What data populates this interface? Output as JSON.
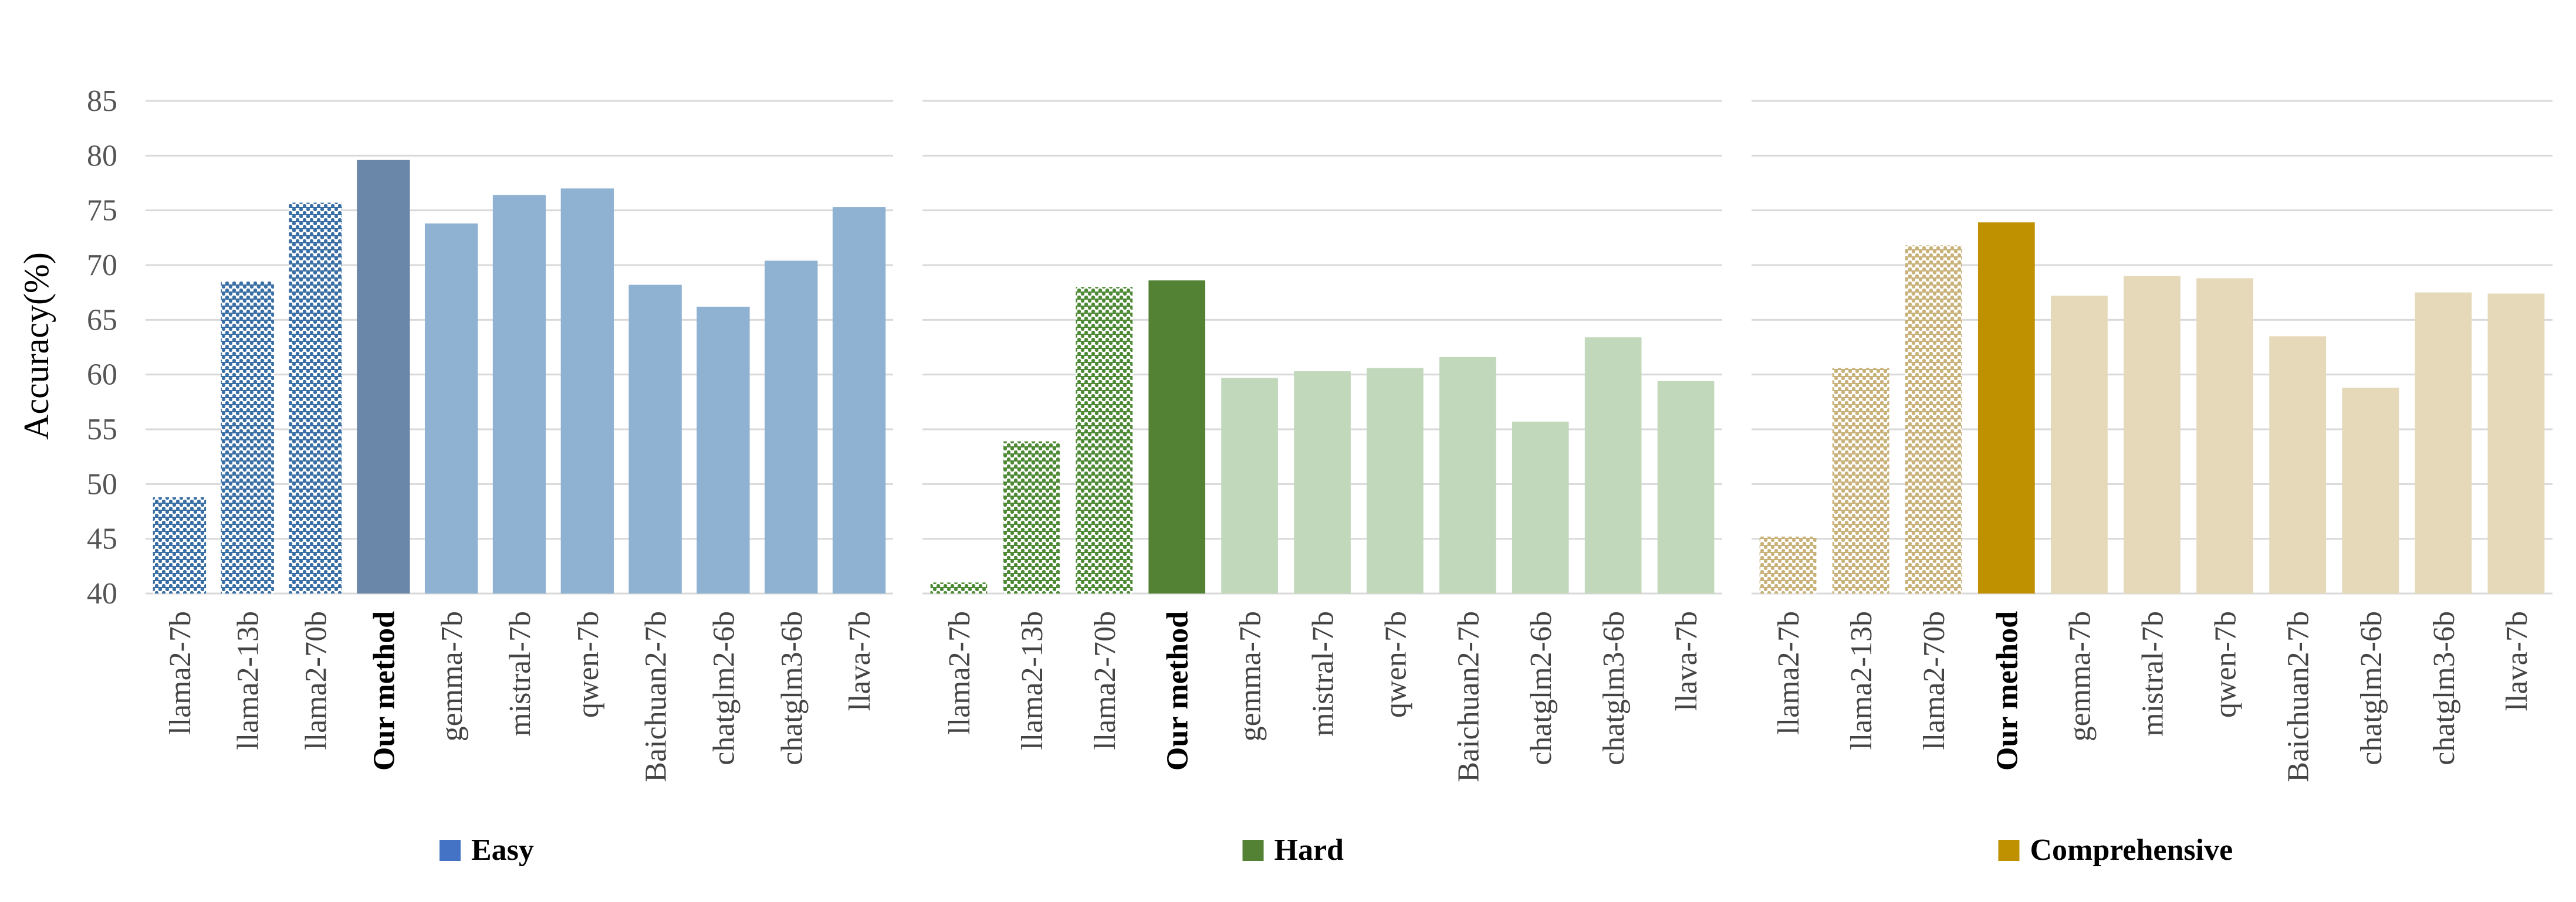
{
  "chart_data": [
    {
      "type": "bar",
      "ylabel": "Accuracy(%)",
      "ylim": [
        40,
        85
      ],
      "yticks": [
        40,
        45,
        50,
        55,
        60,
        65,
        70,
        75,
        80,
        85
      ],
      "grid": true,
      "legend": "Easy",
      "categories": [
        "llama2-7b",
        "llama2-13b",
        "llama2-70b",
        "Our method",
        "gemma-7b",
        "mistral-7b",
        "qwen-7b",
        "Baichuan2-7b",
        "chatglm2-6b",
        "chatglm3-6b",
        "llava-7b"
      ],
      "values": [
        48.8,
        68.5,
        75.7,
        79.6,
        73.8,
        76.4,
        77.0,
        68.2,
        66.2,
        70.4,
        75.3
      ],
      "colors": {
        "hatched": "#3a6fa5",
        "highlight": "#6a86a8",
        "base": "#8fb2d2",
        "legend": "#4472c4"
      }
    },
    {
      "type": "bar",
      "ylim": [
        40,
        85
      ],
      "grid": true,
      "legend": "Hard",
      "categories": [
        "llama2-7b",
        "llama2-13b",
        "llama2-70b",
        "Our method",
        "gemma-7b",
        "mistral-7b",
        "qwen-7b",
        "Baichuan2-7b",
        "chatglm2-6b",
        "chatglm3-6b",
        "llava-7b"
      ],
      "values": [
        41.0,
        53.9,
        68.0,
        68.6,
        59.7,
        60.3,
        60.6,
        61.6,
        55.7,
        63.4,
        59.4
      ],
      "colors": {
        "hatched": "#4e8a35",
        "highlight": "#548235",
        "base": "#c1d8bb",
        "legend": "#548235"
      }
    },
    {
      "type": "bar",
      "ylim": [
        40,
        85
      ],
      "grid": true,
      "legend": "Comprehensive",
      "categories": [
        "llama2-7b",
        "llama2-13b",
        "llama2-70b",
        "Our method",
        "gemma-7b",
        "mistral-7b",
        "qwen-7b",
        "Baichuan2-7b",
        "chatglm2-6b",
        "chatglm3-6b",
        "llava-7b"
      ],
      "values": [
        45.2,
        60.6,
        71.8,
        73.9,
        67.2,
        69.0,
        68.8,
        63.5,
        58.8,
        67.5,
        67.4
      ],
      "colors": {
        "hatched": "#c9b27a",
        "highlight": "#bf9000",
        "base": "#e5d9b9",
        "legend": "#bf9000"
      }
    }
  ]
}
